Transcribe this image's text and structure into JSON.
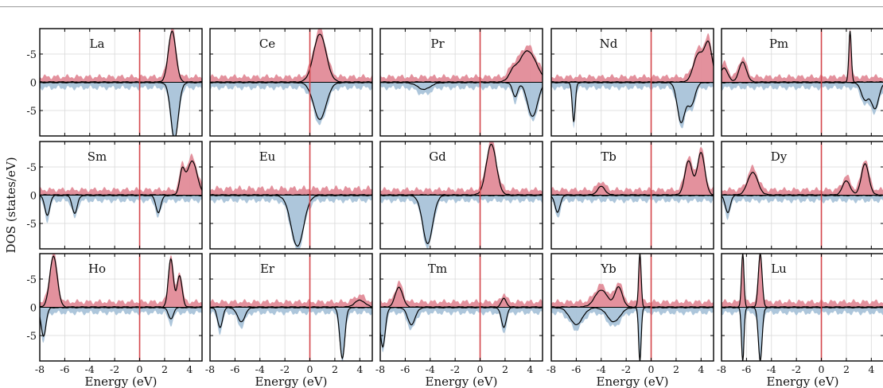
{
  "ylabel": "DOS (states/eV)",
  "xlabel": "Energy (eV)",
  "colors": {
    "spin_up": "#e28b98",
    "spin_down": "#a9c3d9",
    "fermi": "#d4464b",
    "curve": "#000000",
    "grid": "#d9d9d9"
  },
  "chart_data": {
    "type": "area",
    "grid": "on",
    "xlim": [
      -8,
      5
    ],
    "ylim": [
      -9.5,
      9.5
    ],
    "x_ticks": [
      "-8",
      "-6",
      "-4",
      "-2",
      "0",
      "2",
      "4"
    ],
    "y_ticks": [
      "-5",
      "0",
      "-5"
    ],
    "xlabel": "Energy (eV)",
    "ylabel": "DOS (states/eV)",
    "fermi_level": 0,
    "panels": [
      {
        "element": "La",
        "up_peaks": [
          [
            2.6,
            9.0,
            0.3
          ]
        ],
        "down_peaks": [
          [
            2.8,
            10.0,
            0.3
          ]
        ],
        "up_bg": 1.0,
        "down_bg": 1.0
      },
      {
        "element": "Ce",
        "up_peaks": [
          [
            0.8,
            8.5,
            0.5
          ]
        ],
        "down_peaks": [
          [
            0.8,
            6.5,
            0.5
          ]
        ],
        "up_bg": 1.0,
        "down_bg": 1.0
      },
      {
        "element": "Pr",
        "up_peaks": [
          [
            3.8,
            5.5,
            0.7
          ],
          [
            2.6,
            1.2,
            0.3
          ]
        ],
        "down_peaks": [
          [
            4.2,
            6.0,
            0.4
          ],
          [
            2.8,
            2.5,
            0.2
          ],
          [
            -4.5,
            1.2,
            0.5
          ]
        ],
        "up_bg": 1.0,
        "down_bg": 1.0
      },
      {
        "element": "Nd",
        "up_peaks": [
          [
            3.8,
            5.0,
            0.4
          ],
          [
            4.6,
            6.5,
            0.3
          ]
        ],
        "down_peaks": [
          [
            -6.2,
            7.0,
            0.12
          ],
          [
            2.4,
            7.0,
            0.3
          ],
          [
            3.2,
            4.0,
            0.3
          ]
        ],
        "up_bg": 1.0,
        "down_bg": 1.0
      },
      {
        "element": "Pm",
        "up_peaks": [
          [
            -7.8,
            2.5,
            0.3
          ],
          [
            -6.3,
            3.5,
            0.3
          ],
          [
            2.3,
            9.0,
            0.1
          ]
        ],
        "down_peaks": [
          [
            3.5,
            3.0,
            0.3
          ],
          [
            4.3,
            4.5,
            0.3
          ]
        ],
        "up_bg": 1.0,
        "down_bg": 1.0
      },
      {
        "element": "Sm",
        "up_peaks": [
          [
            3.4,
            4.0,
            0.2
          ],
          [
            4.2,
            6.0,
            0.4
          ]
        ],
        "down_peaks": [
          [
            -5.2,
            3.2,
            0.2
          ],
          [
            -7.4,
            3.5,
            0.2
          ],
          [
            1.5,
            3.0,
            0.2
          ]
        ],
        "up_bg": 1.0,
        "down_bg": 1.0
      },
      {
        "element": "Eu",
        "up_peaks": [],
        "down_peaks": [
          [
            -1.0,
            9.0,
            0.5
          ]
        ],
        "up_bg": 1.2,
        "down_bg": 1.0
      },
      {
        "element": "Gd",
        "up_peaks": [
          [
            0.9,
            9.0,
            0.4
          ]
        ],
        "down_peaks": [
          [
            -4.2,
            8.5,
            0.4
          ]
        ],
        "up_bg": 1.0,
        "down_bg": 1.0
      },
      {
        "element": "Tb",
        "up_peaks": [
          [
            -4.0,
            1.5,
            0.3
          ],
          [
            3.0,
            6.0,
            0.3
          ],
          [
            4.0,
            7.5,
            0.3
          ]
        ],
        "down_peaks": [
          [
            -7.5,
            3.0,
            0.2
          ]
        ],
        "up_bg": 1.0,
        "down_bg": 1.0
      },
      {
        "element": "Dy",
        "up_peaks": [
          [
            -5.5,
            4.0,
            0.4
          ],
          [
            2.0,
            2.5,
            0.3
          ],
          [
            3.5,
            5.5,
            0.3
          ]
        ],
        "down_peaks": [
          [
            -7.5,
            3.0,
            0.2
          ]
        ],
        "up_bg": 1.0,
        "down_bg": 1.0
      },
      {
        "element": "Ho",
        "up_peaks": [
          [
            -6.9,
            9.0,
            0.3
          ],
          [
            2.5,
            8.5,
            0.2
          ],
          [
            3.2,
            5.5,
            0.2
          ]
        ],
        "down_peaks": [
          [
            -7.7,
            5.0,
            0.2
          ],
          [
            2.5,
            2.0,
            0.2
          ]
        ],
        "up_bg": 1.0,
        "down_bg": 1.0
      },
      {
        "element": "Er",
        "up_peaks": [
          [
            4.0,
            1.2,
            0.4
          ]
        ],
        "down_peaks": [
          [
            -7.2,
            3.5,
            0.2
          ],
          [
            -5.5,
            2.5,
            0.3
          ],
          [
            2.6,
            9.0,
            0.2
          ]
        ],
        "up_bg": 1.0,
        "down_bg": 1.0
      },
      {
        "element": "Tm",
        "up_peaks": [
          [
            -6.5,
            3.5,
            0.3
          ],
          [
            1.9,
            1.5,
            0.2
          ]
        ],
        "down_peaks": [
          [
            -7.8,
            7.0,
            0.2
          ],
          [
            -5.5,
            3.0,
            0.3
          ],
          [
            1.9,
            3.5,
            0.2
          ]
        ],
        "up_bg": 1.0,
        "down_bg": 1.0
      },
      {
        "element": "Yb",
        "up_peaks": [
          [
            -4.0,
            3.0,
            0.5
          ],
          [
            -2.6,
            3.5,
            0.3
          ],
          [
            -0.9,
            9.5,
            0.1
          ]
        ],
        "down_peaks": [
          [
            -6.0,
            3.0,
            0.5
          ],
          [
            -3.0,
            2.5,
            0.5
          ],
          [
            -0.9,
            9.5,
            0.1
          ]
        ],
        "up_bg": 1.0,
        "down_bg": 1.0
      },
      {
        "element": "Lu",
        "up_peaks": [
          [
            -6.3,
            9.5,
            0.1
          ],
          [
            -4.9,
            9.5,
            0.15
          ]
        ],
        "down_peaks": [
          [
            -6.3,
            9.5,
            0.1
          ],
          [
            -4.9,
            9.5,
            0.15
          ]
        ],
        "up_bg": 1.0,
        "down_bg": 1.0
      }
    ]
  }
}
